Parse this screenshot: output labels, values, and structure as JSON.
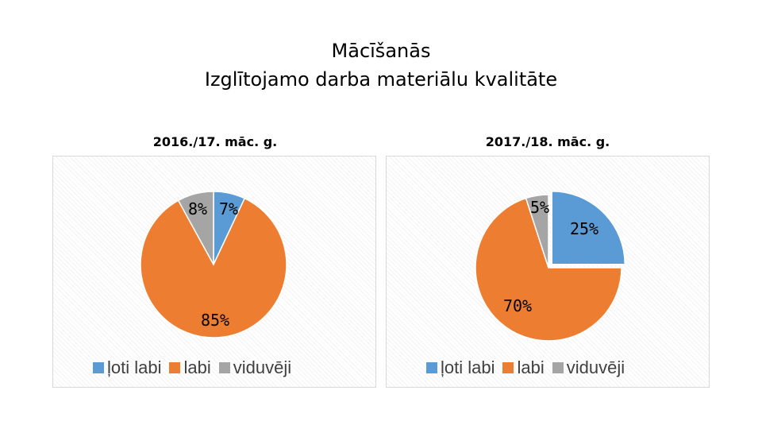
{
  "title": {
    "line1": "Mācīšanās",
    "line2": "Izglītojamo darba materiālu kvalitāte"
  },
  "chart_data": [
    {
      "type": "pie",
      "title": "2016./17. māc. g.",
      "categories": [
        "ļoti labi",
        "labi",
        "viduvēji"
      ],
      "values": [
        7,
        85,
        8
      ],
      "data_labels": [
        "7%",
        "85%",
        "8%"
      ],
      "colors": [
        "#5B9BD5",
        "#ED7D31",
        "#A5A5A5"
      ],
      "legend": "bottom"
    },
    {
      "type": "pie",
      "title": "2017./18. māc. g.",
      "categories": [
        "ļoti labi",
        "labi",
        "viduvēji"
      ],
      "values": [
        25,
        70,
        5
      ],
      "data_labels": [
        "25%",
        "70%",
        "5%"
      ],
      "colors": [
        "#5B9BD5",
        "#ED7D31",
        "#A5A5A5"
      ],
      "legend": "bottom",
      "exploded": "ļoti labi"
    }
  ]
}
